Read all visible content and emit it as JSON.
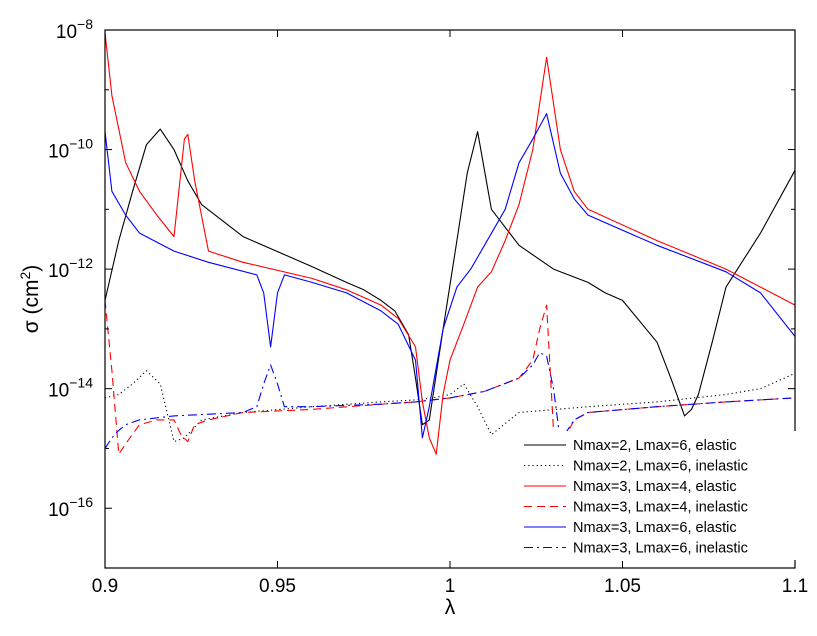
{
  "chart_data": {
    "type": "line",
    "title": "",
    "xlabel": "λ",
    "ylabel": "σ (cm²)",
    "ylabel_parts": {
      "prefix": "σ (cm",
      "exponent": "2",
      "suffix": ")"
    },
    "xlim": [
      0.9,
      1.1
    ],
    "ylim": [
      1e-17,
      1e-08
    ],
    "y_scale": "log",
    "x_ticks": [
      {
        "value": 0.9,
        "label": "0.9"
      },
      {
        "value": 0.95,
        "label": "0.95"
      },
      {
        "value": 1.0,
        "label": "1"
      },
      {
        "value": 1.05,
        "label": "1.05"
      },
      {
        "value": 1.1,
        "label": "1.1"
      }
    ],
    "y_ticks": [
      {
        "value": 1e-08,
        "base": "10",
        "exponent": "−8"
      },
      {
        "value": 1e-10,
        "base": "10",
        "exponent": "−10"
      },
      {
        "value": 1e-12,
        "base": "10",
        "exponent": "−12"
      },
      {
        "value": 1e-14,
        "base": "10",
        "exponent": "−14"
      },
      {
        "value": 1e-16,
        "base": "10",
        "exponent": "−16"
      }
    ],
    "grid": false,
    "legend_position": "bottom-right",
    "series": [
      {
        "name": "Nmax=2, Lmax=6, elastic",
        "color": "#000000",
        "dash": "solid",
        "x": [
          0.9,
          0.904,
          0.908,
          0.912,
          0.916,
          0.92,
          0.924,
          0.928,
          0.94,
          0.96,
          0.97,
          0.975,
          0.98,
          0.984,
          0.988,
          0.99,
          0.992,
          0.994,
          0.998,
          1.002,
          1.005,
          1.008,
          1.012,
          1.02,
          1.03,
          1.04,
          1.045,
          1.05,
          1.06,
          1.064,
          1.068,
          1.07,
          1.072,
          1.076,
          1.08,
          1.09,
          1.1
        ],
        "y": [
          3e-13,
          3e-12,
          2e-11,
          1.2e-10,
          2.2e-10,
          1e-10,
          3e-11,
          1.2e-11,
          3.5e-12,
          1.1e-12,
          6e-13,
          4.5e-13,
          3e-13,
          2e-13,
          8e-14,
          1.5e-14,
          2.5e-15,
          3e-15,
          1e-13,
          3e-12,
          4e-11,
          2e-10,
          1e-11,
          2.5e-12,
          1e-12,
          6e-13,
          4e-13,
          3e-13,
          6e-14,
          1.5e-14,
          3.5e-15,
          4.5e-15,
          8e-15,
          6e-14,
          5e-13,
          4e-12,
          4.5e-11
        ]
      },
      {
        "name": "Nmax=2, Lmax=6, inelastic",
        "color": "#000000",
        "dash": "dotted",
        "x": [
          0.9,
          0.904,
          0.908,
          0.912,
          0.916,
          0.918,
          0.92,
          0.923,
          0.928,
          0.94,
          0.96,
          0.98,
          0.99,
          0.995,
          1.0,
          1.004,
          1.008,
          1.012,
          1.02,
          1.04,
          1.06,
          1.08,
          1.09,
          1.1
        ],
        "y": [
          7e-15,
          8e-15,
          1.2e-14,
          2e-14,
          1.2e-14,
          4e-15,
          1.3e-15,
          1.5e-15,
          3e-15,
          4e-15,
          5e-15,
          6e-15,
          6.5e-15,
          7e-15,
          8e-15,
          1.2e-14,
          5e-15,
          1.7e-15,
          4e-15,
          5e-15,
          6e-15,
          8e-15,
          1e-14,
          1.8e-14
        ]
      },
      {
        "name": "Nmax=3, Lmax=4, elastic",
        "color": "#ff0000",
        "dash": "solid",
        "x": [
          0.9,
          0.902,
          0.906,
          0.91,
          0.915,
          0.92,
          0.923,
          0.924,
          0.926,
          0.93,
          0.94,
          0.96,
          0.97,
          0.98,
          0.985,
          0.99,
          0.992,
          0.994,
          0.996,
          0.998,
          1.0,
          1.004,
          1.008,
          1.012,
          1.016,
          1.02,
          1.024,
          1.028,
          1.032,
          1.036,
          1.04,
          1.06,
          1.08,
          1.09,
          1.1
        ],
        "y": [
          9e-09,
          8e-10,
          6e-11,
          2e-11,
          8e-12,
          3.5e-12,
          1.5e-10,
          1.8e-10,
          3e-11,
          2e-12,
          1.3e-12,
          7e-13,
          4.5e-13,
          2.5e-13,
          1.5e-13,
          5e-14,
          6e-15,
          1.5e-15,
          8e-16,
          8e-15,
          3e-14,
          1.2e-13,
          5e-13,
          9e-13,
          3e-12,
          1.2e-11,
          1e-10,
          3.5e-09,
          1e-10,
          2e-11,
          1e-11,
          3e-12,
          1e-12,
          5e-13,
          2.5e-13
        ]
      },
      {
        "name": "Nmax=3, Lmax=4, inelastic",
        "color": "#ff0000",
        "dash": "dashed",
        "x": [
          0.9,
          0.902,
          0.904,
          0.906,
          0.91,
          0.915,
          0.92,
          0.922,
          0.924,
          0.926,
          0.93,
          0.94,
          0.96,
          0.98,
          0.99,
          1.0,
          1.01,
          1.02,
          1.024,
          1.026,
          1.028,
          1.03,
          1.032,
          1.034,
          1.036,
          1.04,
          1.06,
          1.08,
          1.1
        ],
        "y": [
          3e-13,
          2e-14,
          8e-16,
          1.2e-15,
          2.5e-15,
          3e-15,
          3e-15,
          1.7e-15,
          1.3e-15,
          2.5e-15,
          3e-15,
          4e-15,
          4.5e-15,
          5.5e-15,
          6e-15,
          7e-15,
          9e-15,
          1.5e-14,
          3e-14,
          1e-13,
          2.5e-13,
          2e-15,
          6e-16,
          1.8e-15,
          3e-15,
          4e-15,
          5e-15,
          6e-15,
          7e-15
        ]
      },
      {
        "name": "Nmax=3, Lmax=6, elastic",
        "color": "#0000ff",
        "dash": "solid",
        "x": [
          0.9,
          0.902,
          0.906,
          0.91,
          0.92,
          0.93,
          0.944,
          0.946,
          0.948,
          0.95,
          0.952,
          0.96,
          0.97,
          0.98,
          0.985,
          0.99,
          0.992,
          0.994,
          0.998,
          1.002,
          1.006,
          1.01,
          1.016,
          1.02,
          1.024,
          1.028,
          1.032,
          1.036,
          1.04,
          1.06,
          1.08,
          1.09,
          1.1
        ],
        "y": [
          2e-10,
          2e-11,
          8e-12,
          4e-12,
          2e-12,
          1.3e-12,
          8e-13,
          4e-13,
          5e-14,
          4e-13,
          8e-13,
          6e-13,
          4e-13,
          2e-13,
          1.2e-13,
          3e-14,
          1.5e-15,
          5e-15,
          1e-13,
          5e-13,
          1e-12,
          2.5e-12,
          1e-11,
          6e-11,
          1.5e-10,
          4e-10,
          4e-11,
          1.5e-11,
          8e-12,
          2.5e-12,
          9e-13,
          4e-13,
          7.5e-14
        ]
      },
      {
        "name": "Nmax=3, Lmax=6, inelastic",
        "color": "#0000ff",
        "dash": "dashdot",
        "x": [
          0.9,
          0.902,
          0.904,
          0.906,
          0.91,
          0.92,
          0.94,
          0.944,
          0.946,
          0.948,
          0.95,
          0.952,
          0.96,
          0.98,
          0.99,
          1.0,
          1.01,
          1.02,
          1.024,
          1.026,
          1.028,
          1.03,
          1.032,
          1.034,
          1.036,
          1.04,
          1.06,
          1.08,
          1.1
        ],
        "y": [
          1e-15,
          1.5e-15,
          2e-15,
          2.5e-15,
          3e-15,
          3.5e-15,
          4e-15,
          5e-15,
          1.2e-14,
          2.5e-14,
          1.2e-14,
          5e-15,
          5e-15,
          5.5e-15,
          6e-15,
          7e-15,
          9e-15,
          1.5e-14,
          2.5e-14,
          4e-14,
          3.5e-14,
          1e-14,
          1.3e-15,
          2e-15,
          3e-15,
          4e-15,
          5e-15,
          6e-15,
          7e-15
        ]
      }
    ]
  }
}
